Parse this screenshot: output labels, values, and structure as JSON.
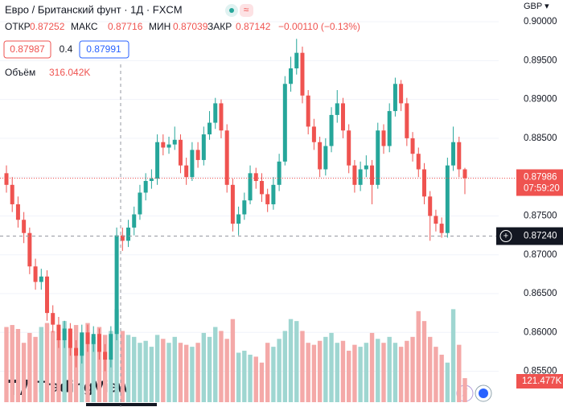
{
  "chart_data": {
    "type": "candlestick",
    "title": "Евро / Британский фунт · 1Д · FXCM",
    "ohlc_header": {
      "open_label": "ОТКР",
      "open": "0.87252",
      "high_label": "МАКС",
      "high": "0.87716",
      "low_label": "МИН",
      "low": "0.87039",
      "close_label": "ЗАКР",
      "close": "0.87142",
      "change": "−0.00110 (−0.13%)"
    },
    "sell_price": "0.87987",
    "spread": "0.4",
    "buy_price": "0.87991",
    "volume_label": "Объём",
    "volume_value": "316.042K",
    "currency": "GBP ▾",
    "logo": "TradingView",
    "current_price": {
      "value": 0.87986,
      "label": "0.87986"
    },
    "countdown": "07:59:20",
    "crosshair_price": {
      "value": 0.8724,
      "label": "0.87240"
    },
    "last_volume_label": "121.477K",
    "up_color": "#26a69a",
    "down_color": "#ef5350",
    "volume_up_color": "#9fd6d1",
    "volume_down_color": "#f4a9a8",
    "ylim": [
      0.8504,
      0.9028
    ],
    "yticks": [
      {
        "value": 0.9,
        "label": "0.90000"
      },
      {
        "value": 0.895,
        "label": "0.89500"
      },
      {
        "value": 0.89,
        "label": "0.89000"
      },
      {
        "value": 0.885,
        "label": "0.88500"
      },
      {
        "value": 0.88,
        "label": "0.88000"
      },
      {
        "value": 0.875,
        "label": "0.87500"
      },
      {
        "value": 0.87,
        "label": "0.87000"
      },
      {
        "value": 0.865,
        "label": "0.86500"
      },
      {
        "value": 0.86,
        "label": "0.86000"
      },
      {
        "value": 0.855,
        "label": "0.85500"
      }
    ],
    "volume_lim": [
      0,
      500
    ],
    "open": [
      0.8805,
      0.879,
      0.8765,
      0.8745,
      0.8728,
      0.8685,
      0.8665,
      0.8672,
      0.8625,
      0.861,
      0.859,
      0.8605,
      0.858,
      0.857,
      0.86,
      0.8585,
      0.8598,
      0.8575,
      0.8565,
      0.8598,
      0.8725,
      0.8718,
      0.8735,
      0.8752,
      0.878,
      0.8795,
      0.8798,
      0.8845,
      0.8838,
      0.8842,
      0.8848,
      0.8815,
      0.88,
      0.8835,
      0.8822,
      0.8855,
      0.887,
      0.8895,
      0.886,
      0.879,
      0.874,
      0.8752,
      0.877,
      0.8805,
      0.8795,
      0.8778,
      0.8765,
      0.879,
      0.882,
      0.892,
      0.894,
      0.896,
      0.8905,
      0.8865,
      0.8845,
      0.881,
      0.884,
      0.888,
      0.8895,
      0.886,
      0.8815,
      0.879,
      0.881,
      0.8815,
      0.879,
      0.886,
      0.884,
      0.8885,
      0.892,
      0.8895,
      0.885,
      0.883,
      0.881,
      0.8775,
      0.875,
      0.874,
      0.8728,
      0.8815,
      0.8845,
      0.881
    ],
    "high": [
      0.8815,
      0.88,
      0.8775,
      0.8755,
      0.8735,
      0.8695,
      0.8682,
      0.868,
      0.8635,
      0.862,
      0.8615,
      0.8612,
      0.859,
      0.861,
      0.861,
      0.8608,
      0.8605,
      0.8585,
      0.8608,
      0.8735,
      0.8735,
      0.8745,
      0.8762,
      0.879,
      0.8805,
      0.881,
      0.8855,
      0.8855,
      0.8852,
      0.8865,
      0.8855,
      0.8825,
      0.8845,
      0.8845,
      0.8865,
      0.8885,
      0.8902,
      0.89,
      0.8868,
      0.8798,
      0.8762,
      0.878,
      0.8815,
      0.8812,
      0.8805,
      0.8785,
      0.88,
      0.883,
      0.893,
      0.8955,
      0.8978,
      0.8968,
      0.8912,
      0.8875,
      0.8852,
      0.885,
      0.889,
      0.8912,
      0.8902,
      0.8868,
      0.8822,
      0.882,
      0.8828,
      0.8822,
      0.887,
      0.8868,
      0.8895,
      0.8928,
      0.8925,
      0.8902,
      0.8858,
      0.8838,
      0.8818,
      0.8782,
      0.8758,
      0.8748,
      0.8825,
      0.8865,
      0.8852,
      0.8812
    ],
    "low": [
      0.878,
      0.8755,
      0.8735,
      0.8715,
      0.8675,
      0.8655,
      0.8655,
      0.8615,
      0.86,
      0.858,
      0.858,
      0.857,
      0.8555,
      0.856,
      0.8575,
      0.8575,
      0.8565,
      0.855,
      0.8555,
      0.859,
      0.8705,
      0.871,
      0.8725,
      0.8745,
      0.877,
      0.8785,
      0.879,
      0.8828,
      0.883,
      0.8835,
      0.8805,
      0.879,
      0.8795,
      0.8812,
      0.8815,
      0.8848,
      0.8862,
      0.885,
      0.878,
      0.873,
      0.8725,
      0.8745,
      0.8765,
      0.8785,
      0.8768,
      0.8755,
      0.8758,
      0.8782,
      0.8815,
      0.891,
      0.8932,
      0.8895,
      0.8855,
      0.8835,
      0.88,
      0.8802,
      0.8832,
      0.887,
      0.885,
      0.8805,
      0.878,
      0.8782,
      0.88,
      0.8765,
      0.8785,
      0.883,
      0.8832,
      0.8878,
      0.8885,
      0.884,
      0.882,
      0.88,
      0.8765,
      0.8718,
      0.873,
      0.8722,
      0.8722,
      0.8808,
      0.88,
      0.8778
    ],
    "close": [
      0.879,
      0.8765,
      0.8745,
      0.8728,
      0.8685,
      0.8665,
      0.8672,
      0.8625,
      0.861,
      0.859,
      0.8605,
      0.858,
      0.857,
      0.86,
      0.8585,
      0.8598,
      0.8575,
      0.8565,
      0.8598,
      0.8725,
      0.8718,
      0.8735,
      0.8752,
      0.878,
      0.8795,
      0.8798,
      0.8845,
      0.8838,
      0.8842,
      0.8848,
      0.8815,
      0.88,
      0.8835,
      0.8822,
      0.8855,
      0.887,
      0.8895,
      0.886,
      0.879,
      0.874,
      0.8752,
      0.877,
      0.8805,
      0.8795,
      0.8778,
      0.8765,
      0.879,
      0.882,
      0.892,
      0.894,
      0.896,
      0.8905,
      0.8865,
      0.8845,
      0.881,
      0.884,
      0.888,
      0.8895,
      0.886,
      0.8815,
      0.879,
      0.881,
      0.8815,
      0.879,
      0.886,
      0.884,
      0.8885,
      0.892,
      0.8895,
      0.885,
      0.883,
      0.881,
      0.8775,
      0.875,
      0.874,
      0.8728,
      0.8815,
      0.8845,
      0.881,
      0.87986
    ],
    "volume": [
      380,
      390,
      370,
      300,
      350,
      330,
      380,
      400,
      360,
      320,
      410,
      370,
      390,
      350,
      400,
      330,
      380,
      340,
      360,
      470,
      360,
      340,
      330,
      300,
      310,
      280,
      340,
      320,
      300,
      330,
      300,
      290,
      280,
      300,
      350,
      330,
      380,
      360,
      320,
      420,
      250,
      260,
      240,
      230,
      200,
      300,
      280,
      320,
      360,
      420,
      410,
      360,
      300,
      290,
      310,
      330,
      350,
      300,
      310,
      260,
      290,
      280,
      300,
      350,
      320,
      300,
      330,
      300,
      280,
      310,
      330,
      460,
      410,
      330,
      280,
      240,
      200,
      470,
      290,
      121.477
    ]
  }
}
